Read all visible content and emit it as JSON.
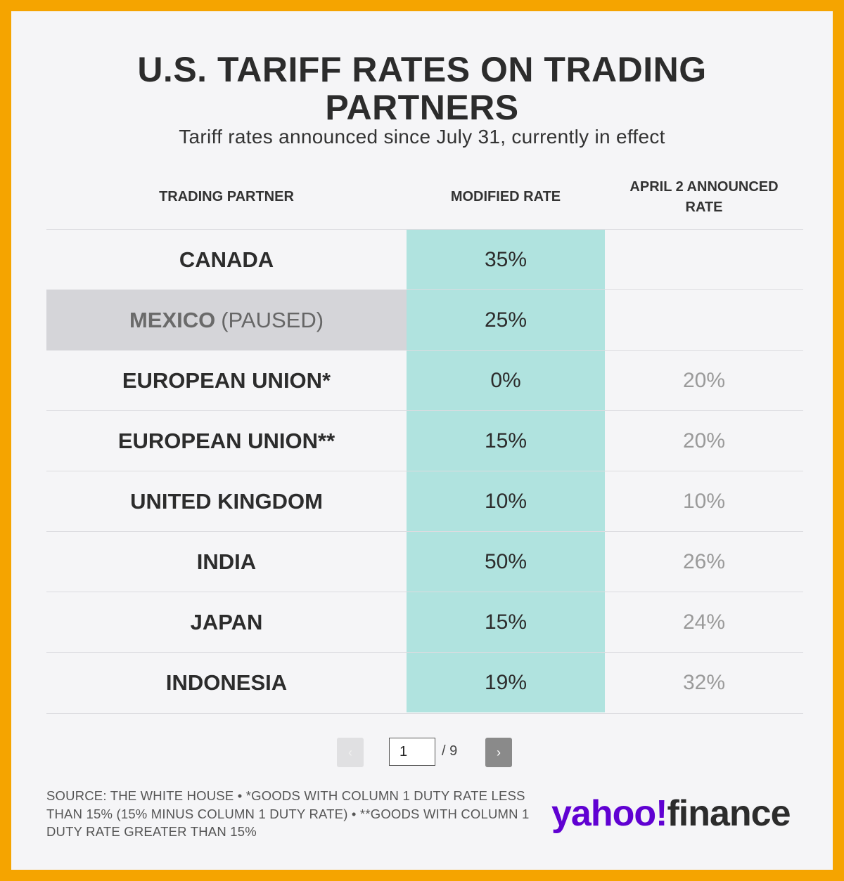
{
  "title_line1": "U.S. TARIFF RATES ON TRADING",
  "title_line2": "PARTNERS",
  "subtitle": "Tariff rates announced since July 31, currently in effect",
  "columns": {
    "partner": "TRADING PARTNER",
    "modified": "MODIFIED RATE",
    "april_line1": "APRIL 2 ANNOUNCED",
    "april_line2": "RATE"
  },
  "chart_data": {
    "type": "table",
    "columns": [
      "TRADING PARTNER",
      "MODIFIED RATE",
      "APRIL 2 ANNOUNCED RATE"
    ],
    "rows": [
      {
        "partner": "CANADA",
        "note": "",
        "modified": "35%",
        "april": ""
      },
      {
        "partner": "MEXICO",
        "note": "(PAUSED)",
        "modified": "25%",
        "april": ""
      },
      {
        "partner": "EUROPEAN UNION*",
        "note": "",
        "modified": "0%",
        "april": "20%"
      },
      {
        "partner": "EUROPEAN UNION**",
        "note": "",
        "modified": "15%",
        "april": "20%"
      },
      {
        "partner": "UNITED KINGDOM",
        "note": "",
        "modified": "10%",
        "april": "10%"
      },
      {
        "partner": "INDIA",
        "note": "",
        "modified": "50%",
        "april": "26%"
      },
      {
        "partner": "JAPAN",
        "note": "",
        "modified": "15%",
        "april": "24%"
      },
      {
        "partner": "INDONESIA",
        "note": "",
        "modified": "19%",
        "april": "32%"
      }
    ]
  },
  "pager": {
    "prev_icon": "‹",
    "next_icon": "›",
    "current_page": "1",
    "total": "/ 9"
  },
  "source_text": "SOURCE: THE WHITE HOUSE • *GOODS WITH COLUMN 1 DUTY RATE LESS THAN 15% (15% MINUS COLUMN 1 DUTY RATE) • **GOODS WITH COLUMN 1 DUTY RATE GREATER THAN 15%",
  "logo": {
    "part1": "yahoo!",
    "part2": "finance"
  },
  "colors": {
    "border": "#f5a400",
    "teal": "#b0e3df",
    "paused_row": "#d5d5d9",
    "brand_purple": "#6001d2"
  }
}
